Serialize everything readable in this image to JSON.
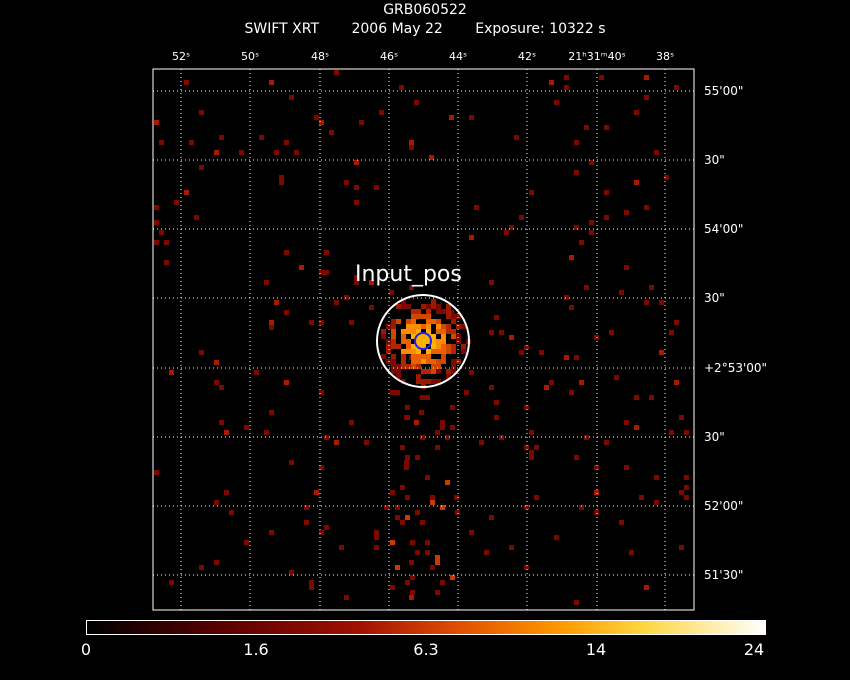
{
  "title": "GRB060522",
  "subtitle": {
    "instrument": "SWIFT XRT",
    "date": "2006 May 22",
    "exposure": "Exposure: 10322 s"
  },
  "ra_labels": [
    "52ˢ",
    "50ˢ",
    "48ˢ",
    "46ˢ",
    "44ˢ",
    "42ˢ",
    "21ʰ31ᵐ40ˢ",
    "38ˢ"
  ],
  "dec_labels": [
    "55'00\"",
    "30\"",
    "54'00\"",
    "30\"",
    "+2°53'00\"",
    "30\"",
    "52'00\"",
    "51'30\""
  ],
  "region_label": "Input_pos",
  "colorbar": {
    "ticks": [
      "0",
      "1.6",
      "6.3",
      "14",
      "24"
    ]
  },
  "colors": {
    "grid": "#ffffff",
    "source_circle": "#ffffff",
    "position_circle": "#2020ff"
  }
}
